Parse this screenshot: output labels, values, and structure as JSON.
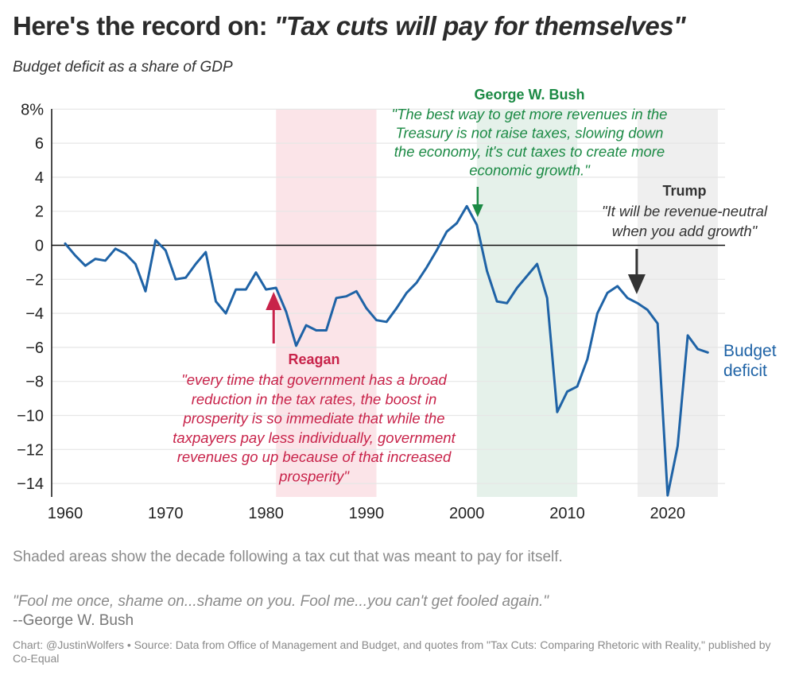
{
  "header": {
    "title_prefix": "Here's the record on: ",
    "title_quote": "\"Tax cuts will pay for themselves\"",
    "subtitle": "Budget deficit as a share of GDP"
  },
  "colors": {
    "line": "#1f63a6",
    "reagan": "#c8234a",
    "reagan_band": "#fbe4e8",
    "bush": "#1c8a45",
    "bush_band": "#e5f1ea",
    "trump": "#333333",
    "trump_band": "#efefef",
    "grid": "#e6e6e6",
    "axis": "#111111",
    "tick_text": "#222222"
  },
  "chart_data": {
    "type": "line",
    "title": "Here's the record on: \"Tax cuts will pay for themselves\"",
    "subtitle": "Budget deficit as a share of GDP",
    "xlabel": "",
    "ylabel": "",
    "xlim": [
      1958.8,
      2026
    ],
    "ylim": [
      -15,
      8
    ],
    "grid": true,
    "x_ticks": [
      1960,
      1970,
      1980,
      1990,
      2000,
      2010,
      2020
    ],
    "x_tick_labels": [
      "1960",
      "1970",
      "1980",
      "1990",
      "2000",
      "2010",
      "2020"
    ],
    "y_ticks": [
      8,
      6,
      4,
      2,
      0,
      -2,
      -4,
      -6,
      -8,
      -10,
      -12,
      -14
    ],
    "y_tick_labels": [
      "8%",
      "6",
      "4",
      "2",
      "0",
      "−2",
      "−4",
      "−6",
      "−8",
      "−10",
      "−12",
      "−14"
    ],
    "series": [
      {
        "name": "Budget deficit",
        "label": [
          "Budget",
          "deficit"
        ],
        "x": [
          1960,
          1961,
          1962,
          1963,
          1964,
          1965,
          1966,
          1967,
          1968,
          1969,
          1970,
          1971,
          1972,
          1973,
          1974,
          1975,
          1976,
          1977,
          1978,
          1979,
          1980,
          1981,
          1982,
          1983,
          1984,
          1985,
          1986,
          1987,
          1988,
          1989,
          1990,
          1991,
          1992,
          1993,
          1994,
          1995,
          1996,
          1997,
          1998,
          1999,
          2000,
          2001,
          2002,
          2003,
          2004,
          2005,
          2006,
          2007,
          2008,
          2009,
          2010,
          2011,
          2012,
          2013,
          2014,
          2015,
          2016,
          2017,
          2018,
          2019,
          2020,
          2021,
          2022,
          2023,
          2024
        ],
        "values": [
          0.1,
          -0.6,
          -1.2,
          -0.8,
          -0.9,
          -0.2,
          -0.5,
          -1.1,
          -2.7,
          0.3,
          -0.3,
          -2.0,
          -1.9,
          -1.1,
          -0.4,
          -3.3,
          -4.0,
          -2.6,
          -2.6,
          -1.6,
          -2.6,
          -2.5,
          -3.9,
          -5.9,
          -4.7,
          -5.0,
          -5.0,
          -3.1,
          -3.0,
          -2.7,
          -3.7,
          -4.4,
          -4.5,
          -3.7,
          -2.8,
          -2.2,
          -1.3,
          -0.3,
          0.8,
          1.3,
          2.3,
          1.2,
          -1.5,
          -3.3,
          -3.4,
          -2.5,
          -1.8,
          -1.1,
          -3.1,
          -9.8,
          -8.6,
          -8.3,
          -6.7,
          -4.0,
          -2.8,
          -2.4,
          -3.1,
          -3.4,
          -3.8,
          -4.6,
          -14.7,
          -11.8,
          -5.3,
          -6.1,
          -6.3
        ]
      }
    ],
    "shaded_periods": [
      {
        "name": "Reagan",
        "start": 1981,
        "end": 1991
      },
      {
        "name": "George W. Bush",
        "start": 2001,
        "end": 2011
      },
      {
        "name": "Trump",
        "start": 2017,
        "end": 2025
      }
    ],
    "annotations": [
      {
        "name": "Reagan",
        "arrow_year": 1981,
        "direction": "up",
        "quote_lines": [
          "\"every time that government has a broad",
          "reduction in the tax rates, the boost in",
          "prosperity is so immediate that while the",
          "taxpayers pay less individually, government",
          "revenues go up because of that increased",
          "prosperity\""
        ]
      },
      {
        "name": "George W. Bush",
        "arrow_year": 2001,
        "direction": "down",
        "quote_lines": [
          "\"The best way to get more revenues in the",
          "Treasury is not raise taxes, slowing down",
          "the economy, it's cut taxes to create more",
          "economic growth.\""
        ]
      },
      {
        "name": "Trump",
        "arrow_year": 2017,
        "direction": "down",
        "quote_lines": [
          "\"It will be revenue-neutral",
          "when you add growth\""
        ]
      }
    ]
  },
  "footer": {
    "note": "Shaded areas show the decade following a tax cut that was meant to pay for itself.",
    "quote": "\"Fool me once, shame on...shame on you. Fool me...you can't get fooled again.\"",
    "quote_author": "--George W. Bush",
    "credit": "Chart: @JustinWolfers • Source: Data from Office of Management and Budget, and quotes from \"Tax Cuts: Comparing Rhetoric with Reality,\" published by Co-Equal"
  }
}
